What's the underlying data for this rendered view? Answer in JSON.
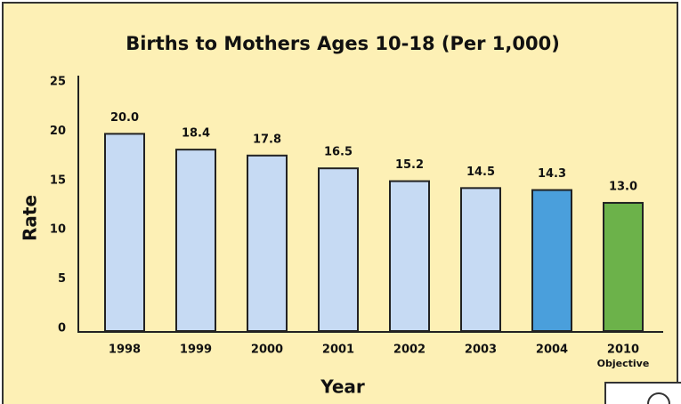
{
  "chart_data": {
    "type": "bar",
    "title": "Births to Mothers Ages 10-18 (Per 1,000)",
    "x_label": "Year",
    "y_label": "Rate",
    "categories": [
      "1998",
      "1999",
      "2000",
      "2001",
      "2002",
      "2003",
      "2004",
      [
        "2010",
        "Objective"
      ]
    ],
    "values": [
      20.0,
      18.4,
      17.8,
      16.5,
      15.2,
      14.5,
      14.3,
      13.0
    ],
    "value_labels": [
      "20.0",
      "18.4",
      "17.8",
      "16.5",
      "15.2",
      "14.5",
      "14.3",
      "13.0"
    ],
    "colors": [
      "#c6daf3",
      "#c6daf3",
      "#c6daf3",
      "#c6daf3",
      "#c6daf3",
      "#c6daf3",
      "#4a9fdc",
      "#6cb24a"
    ],
    "ylim": [
      0,
      25
    ],
    "yticks": [
      0,
      5,
      10,
      15,
      20,
      25
    ],
    "grid": false
  }
}
